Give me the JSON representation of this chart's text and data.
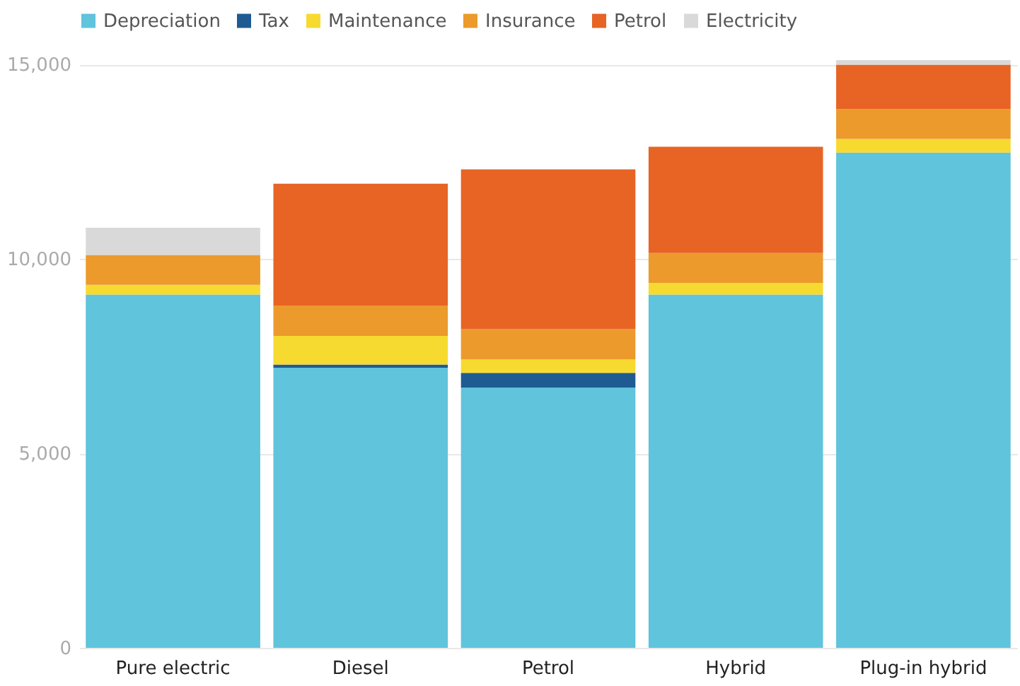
{
  "chart_data": {
    "type": "bar",
    "stacked": true,
    "categories": [
      "Pure electric",
      "Diesel",
      "Petrol",
      "Hybrid",
      "Plug-in hybrid"
    ],
    "series": [
      {
        "name": "Depreciation",
        "color": "#5fc4dc",
        "values": [
          9080,
          7200,
          6690,
          9080,
          12730
        ]
      },
      {
        "name": "Tax",
        "color": "#1f5b93",
        "values": [
          0,
          80,
          380,
          0,
          0
        ]
      },
      {
        "name": "Maintenance",
        "color": "#f7da30",
        "values": [
          250,
          740,
          350,
          300,
          350
        ]
      },
      {
        "name": "Insurance",
        "color": "#ec9a2c",
        "values": [
          770,
          780,
          770,
          770,
          770
        ]
      },
      {
        "name": "Petrol",
        "color": "#e76424",
        "values": [
          0,
          3130,
          4110,
          2730,
          1140
        ]
      },
      {
        "name": "Electricity",
        "color": "#d9d9d9",
        "values": [
          700,
          0,
          0,
          0,
          120
        ]
      }
    ],
    "ylim": [
      0,
      15200
    ],
    "yticks": [
      0,
      {
        "value": 5000,
        "label": "5,000"
      },
      {
        "value": 10000,
        "label": "10,000"
      },
      {
        "value": 15000,
        "label": "15,000"
      }
    ],
    "grid": "y",
    "legend": "top left"
  }
}
